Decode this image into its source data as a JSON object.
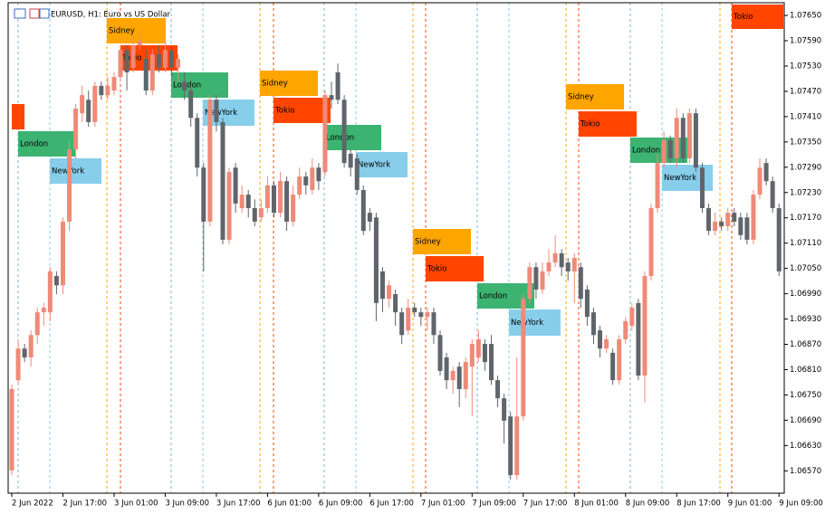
{
  "chart_data": {
    "type": "candlestick",
    "title": "EURUSD, H1:  Euro vs US Dollar",
    "categories": [
      "2 Jun 2022",
      null,
      null,
      null,
      null,
      null,
      null,
      null,
      "2 Jun 17:00",
      null,
      null,
      null,
      null,
      null,
      null,
      null,
      "3 Jun 01:00",
      null,
      null,
      null,
      null,
      null,
      null,
      null,
      "3 Jun 09:00",
      null,
      null,
      null,
      null,
      null,
      null,
      null,
      "3 Jun 17:00",
      null,
      null,
      null,
      null,
      null,
      null,
      null,
      "6 Jun 01:00",
      null,
      null,
      null,
      null,
      null,
      null,
      null,
      "6 Jun 09:00",
      null,
      null,
      null,
      null,
      null,
      null,
      null,
      "6 Jun 17:00",
      null,
      null,
      null,
      null,
      null,
      null,
      null,
      "7 Jun 01:00",
      null,
      null,
      null,
      null,
      null,
      null,
      null,
      "7 Jun 09:00",
      null,
      null,
      null,
      null,
      null,
      null,
      null,
      "7 Jun 17:00",
      null,
      null,
      null,
      null,
      null,
      null,
      null,
      "8 Jun 01:00",
      null,
      null,
      null,
      null,
      null,
      null,
      null,
      "8 Jun 09:00",
      null,
      null,
      null,
      null,
      null,
      null,
      null,
      "8 Jun 17:00",
      null,
      null,
      null,
      null,
      null,
      null,
      null,
      "9 Jun 01:00",
      null,
      null,
      null,
      null,
      null,
      null,
      null,
      "9 Jun 09:00"
    ],
    "open": [
      1.06571,
      1.06785,
      1.0686,
      1.06839,
      1.06892,
      1.06946,
      1.06946,
      1.07032,
      1.0701,
      1.07161,
      1.07332,
      1.07418,
      1.0745,
      1.07397,
      1.07483,
      1.07461,
      1.07472,
      1.07504,
      1.07568,
      1.07526,
      1.07579,
      1.07547,
      1.07472,
      1.07558,
      1.07526,
      1.07568,
      1.07526,
      1.07493,
      1.07472,
      1.07407,
      1.07289,
      1.07161,
      1.0745,
      1.07397,
      1.07118,
      1.07289,
      1.07193,
      1.07225,
      1.07193,
      1.07171,
      1.07193,
      1.07247,
      1.07182,
      1.07257,
      1.07161,
      1.07225,
      1.07268,
      1.07236,
      1.07289,
      1.07279,
      1.07461,
      1.07515,
      1.0745,
      1.07322,
      1.07311,
      1.07236,
      1.07182,
      1.07171,
      1.07043,
      1.06978,
      1.06989,
      1.06946,
      1.06903,
      1.06957,
      1.06946,
      1.06935,
      1.06946,
      1.06892,
      1.06839,
      1.06785,
      1.06817,
      1.06764,
      1.06817,
      1.06839,
      1.06871,
      1.06871,
      1.06785,
      1.06742,
      1.06699,
      1.0656,
      1.06699,
      1.06978,
      1.07053,
      1.07,
      1.07043,
      1.07064,
      1.07086,
      1.07064,
      1.07043,
      1.07053,
      1.07,
      1.06946,
      1.06903,
      1.0686,
      1.0685,
      1.06785,
      1.06882,
      1.06914,
      1.06968,
      1.06796,
      1.07032,
      1.07193,
      1.073,
      1.07354,
      1.07311,
      1.07407,
      1.07311,
      1.07418,
      1.07289,
      1.07193,
      1.07139,
      1.07161,
      1.0715,
      1.07182,
      1.07171,
      1.07171,
      1.07118,
      1.07225,
      1.073,
      1.07257,
      1.07193
    ],
    "high": [
      1.06775,
      1.0688,
      1.06871,
      1.06903,
      1.06957,
      1.06968,
      1.07053,
      1.07043,
      1.07171,
      1.07354,
      1.0744,
      1.07483,
      1.07472,
      1.07493,
      1.07493,
      1.07504,
      1.07515,
      1.07579,
      1.07579,
      1.07601,
      1.07612,
      1.07568,
      1.07568,
      1.07579,
      1.0759,
      1.07579,
      1.07558,
      1.07515,
      1.07483,
      1.07418,
      1.073,
      1.07461,
      1.07461,
      1.07407,
      1.07289,
      1.073,
      1.07247,
      1.07236,
      1.07214,
      1.07214,
      1.07268,
      1.07257,
      1.07279,
      1.07268,
      1.07247,
      1.07289,
      1.07279,
      1.07311,
      1.073,
      1.07472,
      1.07493,
      1.07536,
      1.07461,
      1.07332,
      1.07322,
      1.07247,
      1.07193,
      1.07182,
      1.07053,
      1.07021,
      1.07,
      1.06957,
      1.06978,
      1.06968,
      1.06957,
      1.06957,
      1.06957,
      1.06903,
      1.0685,
      1.06817,
      1.06828,
      1.06839,
      1.06882,
      1.06903,
      1.06882,
      1.06892,
      1.06796,
      1.06753,
      1.0671,
      1.06839,
      1.06989,
      1.07064,
      1.07064,
      1.07064,
      1.07096,
      1.07129,
      1.07096,
      1.07075,
      1.07086,
      1.07064,
      1.0701,
      1.06957,
      1.06914,
      1.06892,
      1.0686,
      1.06892,
      1.06935,
      1.06968,
      1.06978,
      1.07043,
      1.07204,
      1.07322,
      1.07375,
      1.07365,
      1.07429,
      1.07418,
      1.07429,
      1.07429,
      1.073,
      1.07204,
      1.07182,
      1.07171,
      1.07193,
      1.07193,
      1.07182,
      1.07182,
      1.07236,
      1.07311,
      1.07311,
      1.07268,
      1.07204
    ],
    "low": [
      1.0656,
      1.06774,
      1.06828,
      1.06817,
      1.06871,
      1.06914,
      1.06925,
      1.06989,
      1.06989,
      1.07139,
      1.07311,
      1.07397,
      1.07386,
      1.07386,
      1.0745,
      1.0745,
      1.07461,
      1.07493,
      1.07472,
      1.07515,
      1.07568,
      1.07461,
      1.07461,
      1.07515,
      1.07515,
      1.07504,
      1.07493,
      1.0745,
      1.07386,
      1.07268,
      1.07043,
      1.0715,
      1.07375,
      1.07107,
      1.07107,
      1.07182,
      1.07182,
      1.07171,
      1.0715,
      1.07161,
      1.07182,
      1.07171,
      1.07171,
      1.07139,
      1.0715,
      1.07214,
      1.07225,
      1.07225,
      1.07236,
      1.07268,
      1.07429,
      1.0744,
      1.07289,
      1.07268,
      1.07225,
      1.07129,
      1.07139,
      1.06925,
      1.06946,
      1.06957,
      1.06914,
      1.06871,
      1.06892,
      1.06935,
      1.06914,
      1.06903,
      1.06871,
      1.06796,
      1.06764,
      1.06753,
      1.06721,
      1.06742,
      1.06699,
      1.06828,
      1.06807,
      1.06774,
      1.06721,
      1.06635,
      1.06549,
      1.06549,
      1.06689,
      1.06968,
      1.06978,
      1.06989,
      1.07032,
      1.07053,
      1.07032,
      1.07021,
      1.06968,
      1.06957,
      1.06914,
      1.06871,
      1.06839,
      1.0685,
      1.06774,
      1.06774,
      1.06871,
      1.06903,
      1.06785,
      1.06732,
      1.07021,
      1.07182,
      1.07289,
      1.073,
      1.07289,
      1.073,
      1.073,
      1.07279,
      1.07182,
      1.07129,
      1.07129,
      1.07139,
      1.07139,
      1.0715,
      1.07118,
      1.07107,
      1.07107,
      1.07214,
      1.07247,
      1.07182,
      1.07032
    ],
    "close": [
      1.06764,
      1.0686,
      1.06839,
      1.06892,
      1.06946,
      1.06957,
      1.07043,
      1.0701,
      1.07161,
      1.07332,
      1.07429,
      1.07461,
      1.07397,
      1.07483,
      1.07461,
      1.07483,
      1.07504,
      1.07568,
      1.07515,
      1.07579,
      1.0759,
      1.07472,
      1.07558,
      1.07526,
      1.07568,
      1.07526,
      1.07547,
      1.07472,
      1.07407,
      1.07289,
      1.07161,
      1.0745,
      1.07397,
      1.07118,
      1.07279,
      1.07204,
      1.07225,
      1.07193,
      1.07161,
      1.07193,
      1.07247,
      1.07182,
      1.07257,
      1.07161,
      1.07225,
      1.07268,
      1.07247,
      1.07289,
      1.07257,
      1.07461,
      1.0745,
      1.0745,
      1.073,
      1.07289,
      1.07236,
      1.07139,
      1.07161,
      1.06968,
      1.06978,
      1.0701,
      1.06946,
      1.06892,
      1.06957,
      1.06946,
      1.06935,
      1.06946,
      1.06892,
      1.06807,
      1.06785,
      1.06807,
      1.06764,
      1.06828,
      1.06871,
      1.06882,
      1.06828,
      1.06785,
      1.06742,
      1.06689,
      1.0656,
      1.06699,
      1.06978,
      1.07053,
      1.07,
      1.07043,
      1.07064,
      1.07086,
      1.07053,
      1.07043,
      1.07075,
      1.06978,
      1.06935,
      1.06892,
      1.0686,
      1.06882,
      1.06785,
      1.06882,
      1.06925,
      1.06957,
      1.06796,
      1.07032,
      1.07193,
      1.073,
      1.07354,
      1.07311,
      1.07407,
      1.07311,
      1.07418,
      1.07289,
      1.07193,
      1.07139,
      1.07161,
      1.0715,
      1.07182,
      1.07161,
      1.07129,
      1.07118,
      1.07225,
      1.07289,
      1.07257,
      1.07193,
      1.07043
    ],
    "up_color": "#ef8a78",
    "down_color": "#60656b",
    "ylim": [
      1.06517,
      1.07678
    ],
    "yticks": [
      {
        "value": 1.0765,
        "label": "1.07650"
      },
      {
        "value": 1.0759,
        "label": "1.07590"
      },
      {
        "value": 1.0753,
        "label": "1.07530"
      },
      {
        "value": 1.0747,
        "label": "1.07470"
      },
      {
        "value": 1.0741,
        "label": "1.07410"
      },
      {
        "value": 1.0735,
        "label": "1.07350"
      },
      {
        "value": 1.0729,
        "label": "1.07290"
      },
      {
        "value": 1.0723,
        "label": "1.07230"
      },
      {
        "value": 1.0717,
        "label": "1.07170"
      },
      {
        "value": 1.0711,
        "label": "1.07110"
      },
      {
        "value": 1.0705,
        "label": "1.07050"
      },
      {
        "value": 1.0699,
        "label": "1.06990"
      },
      {
        "value": 1.0693,
        "label": "1.06930"
      },
      {
        "value": 1.0687,
        "label": "1.06870"
      },
      {
        "value": 1.0681,
        "label": "1.06810"
      },
      {
        "value": 1.0675,
        "label": "1.06750"
      },
      {
        "value": 1.0669,
        "label": "1.06690"
      },
      {
        "value": 1.0663,
        "label": "1.06630"
      },
      {
        "value": 1.0657,
        "label": "1.06570"
      }
    ],
    "grid": false,
    "session_boxes": [
      {
        "text": "London",
        "color": "#3cb371"
      },
      {
        "text": "NewYork",
        "color": "#87ceeb"
      },
      {
        "text": "Sidney",
        "color": "#ffa500"
      },
      {
        "text": "Tokio",
        "color": "#ff4500"
      },
      {
        "text": "London",
        "color": "#3cb371"
      },
      {
        "text": "NewYork",
        "color": "#87ceeb"
      },
      {
        "text": "Sidney",
        "color": "#ffa500"
      },
      {
        "text": "Tokio",
        "color": "#ff4500"
      },
      {
        "text": "London",
        "color": "#3cb371"
      },
      {
        "text": "NewYork",
        "color": "#87ceeb"
      },
      {
        "text": "Sidney",
        "color": "#ffa500"
      },
      {
        "text": "Tokio",
        "color": "#ff4500"
      },
      {
        "text": "London",
        "color": "#3cb371"
      },
      {
        "text": "NewYork",
        "color": "#87ceeb"
      },
      {
        "text": "Sidney",
        "color": "#ffa500"
      },
      {
        "text": "Tokio",
        "color": "#ff4500"
      },
      {
        "text": "London",
        "color": "#3cb371"
      },
      {
        "text": "NewYork",
        "color": "#87ceeb"
      },
      {
        "text": "Tokio",
        "color": "#ff4500"
      }
    ]
  }
}
